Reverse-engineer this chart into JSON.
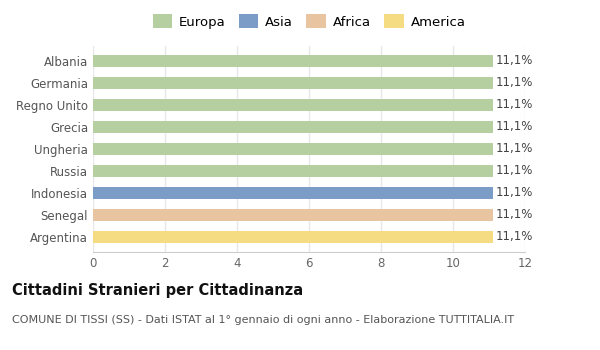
{
  "categories": [
    "Albania",
    "Germania",
    "Regno Unito",
    "Grecia",
    "Ungheria",
    "Russia",
    "Indonesia",
    "Senegal",
    "Argentina"
  ],
  "values": [
    11.1,
    11.1,
    11.1,
    11.1,
    11.1,
    11.1,
    11.1,
    11.1,
    11.1
  ],
  "bar_colors": [
    "#b5cfa0",
    "#b5cfa0",
    "#b5cfa0",
    "#b5cfa0",
    "#b5cfa0",
    "#b5cfa0",
    "#7a9cc7",
    "#e8c4a0",
    "#f5dc82"
  ],
  "legend_labels": [
    "Europa",
    "Asia",
    "Africa",
    "America"
  ],
  "legend_colors": [
    "#b5cfa0",
    "#7a9cc7",
    "#e8c4a0",
    "#f5dc82"
  ],
  "label_text": "11,1%",
  "xlim": [
    0,
    12
  ],
  "xticks": [
    0,
    2,
    4,
    6,
    8,
    10,
    12
  ],
  "title_bold": "Cittadini Stranieri per Cittadinanza",
  "subtitle": "COMUNE DI TISSI (SS) - Dati ISTAT al 1° gennaio di ogni anno - Elaborazione TUTTITALIA.IT",
  "background_color": "#ffffff",
  "plot_bg_color": "#ffffff",
  "grid_color": "#e8e8e8",
  "title_fontsize": 10.5,
  "subtitle_fontsize": 8,
  "annotation_fontsize": 8.5,
  "tick_fontsize": 8.5,
  "legend_fontsize": 9.5,
  "bar_height": 0.55
}
